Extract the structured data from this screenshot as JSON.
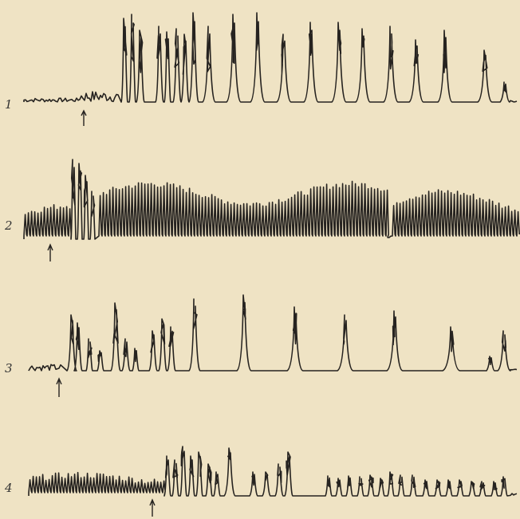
{
  "traces": [
    {
      "label": "1"
    },
    {
      "label": "2"
    },
    {
      "label": "3"
    },
    {
      "label": "4"
    }
  ]
}
